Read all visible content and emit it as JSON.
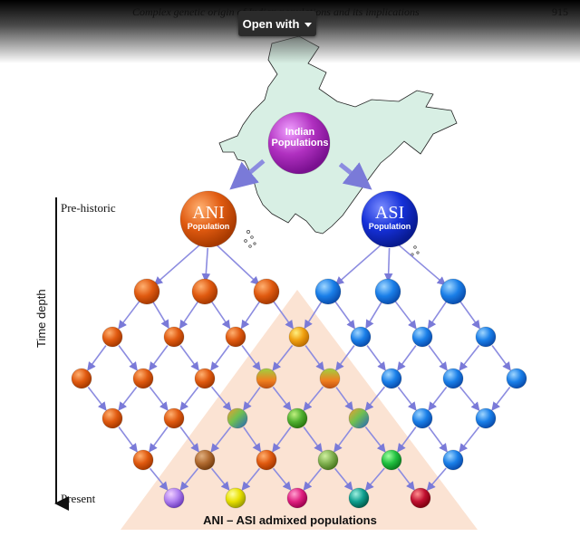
{
  "header": {
    "title": "Complex genetic origin of Indian populations and its implications",
    "page_number": "915"
  },
  "toolbar": {
    "open_with_label": "Open with",
    "caret_icon": "chevron-down-icon"
  },
  "figure": {
    "root_label_line1": "Indian",
    "root_label_line2": "Populations",
    "ani_abbrev": "ANI",
    "ani_sub": "Population",
    "asi_abbrev": "ASI",
    "asi_sub": "Population",
    "label_prehistoric": "Pre-historic",
    "label_present": "Present",
    "label_time_depth": "Time depth",
    "label_admixed": "ANI – ASI admixed populations",
    "colors": {
      "ani": "#e05a10",
      "asi": "#1a7fe8",
      "root": "#b030c0",
      "triangle": "#fbe3d3",
      "map": "#d8efe4",
      "arrow": "#8c8ce0"
    }
  }
}
